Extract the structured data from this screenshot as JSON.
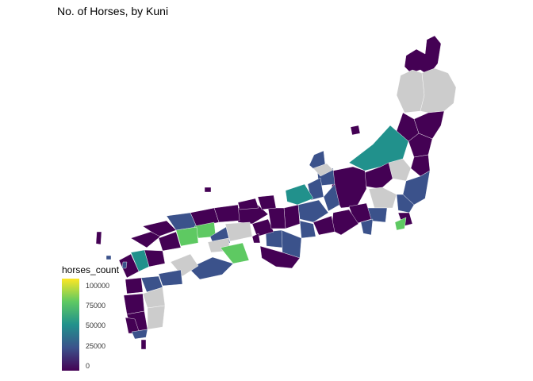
{
  "title": "No. of Horses, by Kuni",
  "legend": {
    "title": "horses_count",
    "ticks": [
      "100000",
      "75000",
      "50000",
      "25000",
      "0"
    ],
    "tick_values": [
      100000,
      75000,
      50000,
      25000,
      0
    ],
    "max": 115000
  },
  "colors": {
    "low": "#440154",
    "mid_low": "#3b528b",
    "mid": "#21918c",
    "mid_high": "#5ec962",
    "high": "#fde725",
    "no_data": "#cccccc"
  }
}
